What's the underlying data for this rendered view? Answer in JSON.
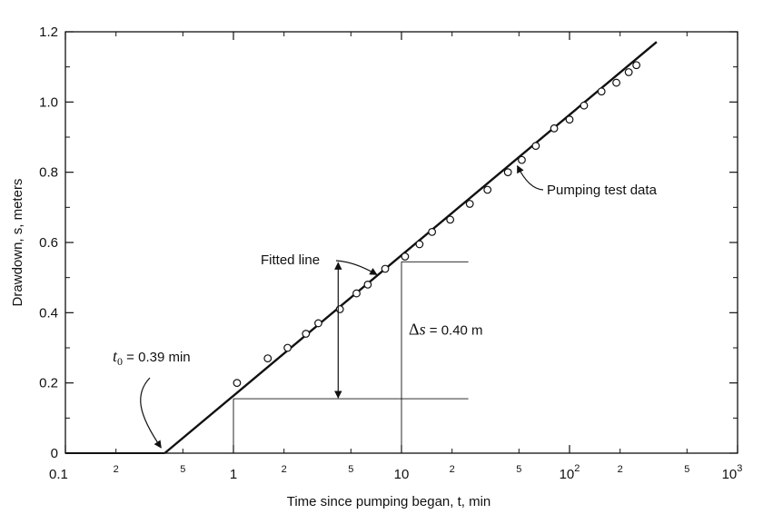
{
  "chart_data": {
    "type": "scatter",
    "xscale": "log",
    "xlim": [
      0.1,
      1000
    ],
    "ylim": [
      0,
      1.2
    ],
    "xlabel": "Time since pumping began, t,  min",
    "ylabel": "Drawdown, s, meters",
    "x_major_ticks": [
      {
        "value": 0.1,
        "label": "0.1"
      },
      {
        "value": 1,
        "label": "1"
      },
      {
        "value": 10,
        "label": "10"
      },
      {
        "value": 100,
        "label": "10",
        "sup": "2"
      },
      {
        "value": 1000,
        "label": "10",
        "sup": "3"
      }
    ],
    "x_minor_ticks": [
      {
        "value": 0.2,
        "label": "2"
      },
      {
        "value": 0.5,
        "label": "5"
      },
      {
        "value": 2,
        "label": "2"
      },
      {
        "value": 5,
        "label": "5"
      },
      {
        "value": 20,
        "label": "2"
      },
      {
        "value": 50,
        "label": "5"
      },
      {
        "value": 200,
        "label": "2"
      },
      {
        "value": 500,
        "label": "5"
      }
    ],
    "y_ticks": [
      {
        "value": 0,
        "label": "0"
      },
      {
        "value": 0.2,
        "label": "0.2"
      },
      {
        "value": 0.4,
        "label": "0.4"
      },
      {
        "value": 0.6,
        "label": "0.6"
      },
      {
        "value": 0.8,
        "label": "0.8"
      },
      {
        "value": 1.0,
        "label": "1.0"
      },
      {
        "value": 1.2,
        "label": "1.2"
      }
    ],
    "y_minor_ticks": [
      0.1,
      0.3,
      0.5,
      0.7,
      0.9,
      1.1
    ],
    "series": [
      {
        "name": "Pumping test data",
        "points": [
          [
            1.05,
            0.2
          ],
          [
            1.6,
            0.27
          ],
          [
            2.1,
            0.3
          ],
          [
            2.7,
            0.34
          ],
          [
            3.2,
            0.37
          ],
          [
            4.3,
            0.41
          ],
          [
            5.4,
            0.455
          ],
          [
            6.3,
            0.48
          ],
          [
            8.0,
            0.525
          ],
          [
            10.5,
            0.56
          ],
          [
            12.8,
            0.595
          ],
          [
            15.2,
            0.63
          ],
          [
            19.5,
            0.665
          ],
          [
            25.5,
            0.71
          ],
          [
            32.5,
            0.75
          ],
          [
            43.0,
            0.8
          ],
          [
            52.0,
            0.835
          ],
          [
            63.0,
            0.875
          ],
          [
            81.0,
            0.925
          ],
          [
            100.0,
            0.95
          ],
          [
            122.0,
            0.99
          ],
          [
            155.0,
            1.03
          ],
          [
            190.0,
            1.055
          ],
          [
            225.0,
            1.085
          ],
          [
            250.0,
            1.105
          ]
        ]
      }
    ],
    "fitted_line": {
      "label": "Fitted line",
      "x0": 0.39,
      "slope_per_log_cycle": 0.4,
      "x_end": 330
    },
    "construction": {
      "t1": 1,
      "s1": 0.155,
      "t10": 10,
      "s10": 0.545,
      "x_right": 25,
      "arrow_x": 4.2
    },
    "annotations": {
      "t0_prefix": "t",
      "t0_sub": "0",
      "t0_rest": " = 0.39 min",
      "delta_symbol": "Δ",
      "delta_var": "s",
      "delta_rest": " = 0.40 m",
      "fitted_line_label": "Fitted line",
      "data_label": "Pumping test data"
    }
  }
}
